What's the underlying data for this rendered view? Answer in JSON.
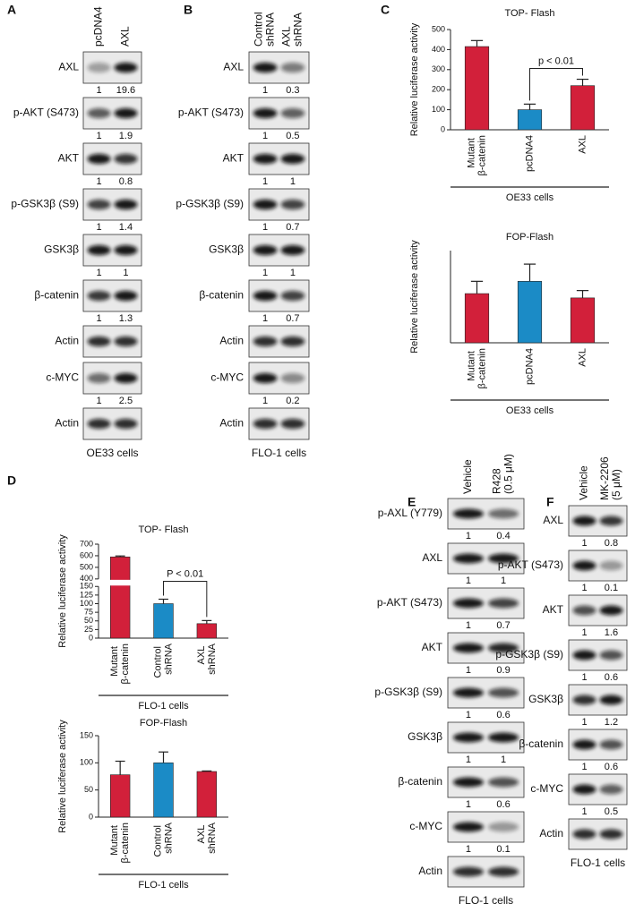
{
  "blots": [
    {
      "panel": "A",
      "lanes": [
        "pcDNA4",
        "AXL"
      ],
      "cells": "OE33 cells",
      "rows": [
        {
          "label": "AXL",
          "quant": [
            1,
            19.6
          ]
        },
        {
          "label": "p-AKT (S473)",
          "quant": [
            1,
            1.9
          ]
        },
        {
          "label": "AKT",
          "quant": [
            1,
            0.8
          ]
        },
        {
          "label": "p-GSK3β (S9)",
          "quant": [
            1,
            1.4
          ]
        },
        {
          "label": "GSK3β",
          "quant": [
            1,
            1
          ]
        },
        {
          "label": "β-catenin",
          "quant": [
            1,
            1.3
          ]
        },
        {
          "label": "Actin"
        },
        {
          "label": "c-MYC",
          "quant": [
            1,
            2.5
          ]
        },
        {
          "label": "Actin"
        }
      ]
    },
    {
      "panel": "B",
      "lanes": [
        "Control shRNA",
        "AXL shRNA"
      ],
      "cells": "FLO-1 cells",
      "rows": [
        {
          "label": "AXL",
          "quant": [
            1,
            0.3
          ]
        },
        {
          "label": "p-AKT (S473)",
          "quant": [
            1,
            0.5
          ]
        },
        {
          "label": "AKT",
          "quant": [
            1,
            1
          ]
        },
        {
          "label": "p-GSK3β (S9)",
          "quant": [
            1,
            0.7
          ]
        },
        {
          "label": "GSK3β",
          "quant": [
            1,
            1
          ]
        },
        {
          "label": "β-catenin",
          "quant": [
            1,
            0.7
          ]
        },
        {
          "label": "Actin"
        },
        {
          "label": "c-MYC",
          "quant": [
            1,
            0.2
          ]
        },
        {
          "label": "Actin"
        }
      ]
    },
    {
      "panel": "E",
      "lanes": [
        "Vehicle",
        "R428 (0.5 μM)"
      ],
      "cells": "FLO-1 cells",
      "rows": [
        {
          "label": "p-AXL (Y779)",
          "quant": [
            1,
            0.4
          ]
        },
        {
          "label": "AXL",
          "quant": [
            1,
            1
          ]
        },
        {
          "label": "p-AKT (S473)",
          "quant": [
            1,
            0.7
          ]
        },
        {
          "label": "AKT",
          "quant": [
            1,
            0.9
          ]
        },
        {
          "label": "p-GSK3β (S9)",
          "quant": [
            1,
            0.6
          ]
        },
        {
          "label": "GSK3β",
          "quant": [
            1,
            1
          ]
        },
        {
          "label": "β-catenin",
          "quant": [
            1,
            0.6
          ]
        },
        {
          "label": "c-MYC",
          "quant": [
            1,
            0.1
          ]
        },
        {
          "label": "Actin"
        }
      ]
    },
    {
      "panel": "F",
      "lanes": [
        "Vehicle",
        "MK-2206 (5 μM)"
      ],
      "cells": "FLO-1 cells",
      "rows": [
        {
          "label": "AXL",
          "quant": [
            1,
            0.8
          ]
        },
        {
          "label": "p-AKT (S473)",
          "quant": [
            1,
            0.1
          ]
        },
        {
          "label": "AKT",
          "quant": [
            1,
            1.6
          ]
        },
        {
          "label": "p-GSK3β (S9)",
          "quant": [
            1,
            0.6
          ]
        },
        {
          "label": "GSK3β",
          "quant": [
            1,
            1.2
          ]
        },
        {
          "label": "β-catenin",
          "quant": [
            1,
            0.6
          ]
        },
        {
          "label": "c-MYC",
          "quant": [
            1,
            0.5
          ]
        },
        {
          "label": "Actin"
        }
      ]
    }
  ],
  "chart_data": [
    {
      "type": "bar",
      "panel": "C",
      "title": "TOP- Flash",
      "ylabel": "Relative luciferase activity",
      "categories": [
        "Mutant β-catenin",
        "pcDNA4",
        "AXL"
      ],
      "values": [
        415,
        100,
        220
      ],
      "errors": [
        30,
        28,
        32
      ],
      "colors": [
        "#d2203a",
        "#1b8bc6",
        "#d2203a"
      ],
      "ylim": [
        0,
        500
      ],
      "yticks": [
        0,
        100,
        200,
        300,
        400,
        500
      ],
      "annotation": "p < 0.01",
      "xlabel": "OE33 cells"
    },
    {
      "type": "bar",
      "title": "FOP-Flash",
      "ylabel": "Relative luciferase activity",
      "categories": [
        "Mutant β-catenin",
        "pcDNA4",
        "AXL"
      ],
      "values": [
        80,
        100,
        73
      ],
      "errors": [
        20,
        28,
        12
      ],
      "colors": [
        "#d2203a",
        "#1b8bc6",
        "#d2203a"
      ],
      "ylim": [
        0,
        150
      ],
      "xlabel": "OE33 cells"
    },
    {
      "type": "bar",
      "panel": "D",
      "title": "TOP- Flash",
      "ylabel": "Relative luciferase activity",
      "categories": [
        "Mutant β-catenin",
        "Control shRNA",
        "AXL shRNA"
      ],
      "values": [
        590,
        100,
        42
      ],
      "errors": [
        8,
        13,
        9
      ],
      "colors": [
        "#d2203a",
        "#1b8bc6",
        "#d2203a"
      ],
      "ylim": [
        0,
        700
      ],
      "axis_break": [
        150,
        400
      ],
      "yticks": [
        0,
        25,
        50,
        75,
        100,
        125,
        150,
        400,
        500,
        600,
        700
      ],
      "annotation": "P < 0.01",
      "xlabel": "FLO-1 cells"
    },
    {
      "type": "bar",
      "title": "FOP-Flash",
      "ylabel": "Relative luciferase activity",
      "categories": [
        "Mutant β-catenin",
        "Control shRNA",
        "AXL shRNA"
      ],
      "values": [
        78,
        100,
        84
      ],
      "errors": [
        25,
        20,
        1
      ],
      "colors": [
        "#d2203a",
        "#1b8bc6",
        "#d2203a"
      ],
      "ylim": [
        0,
        150
      ],
      "yticks": [
        0,
        50,
        100,
        150
      ],
      "xlabel": "FLO-1 cells"
    }
  ]
}
